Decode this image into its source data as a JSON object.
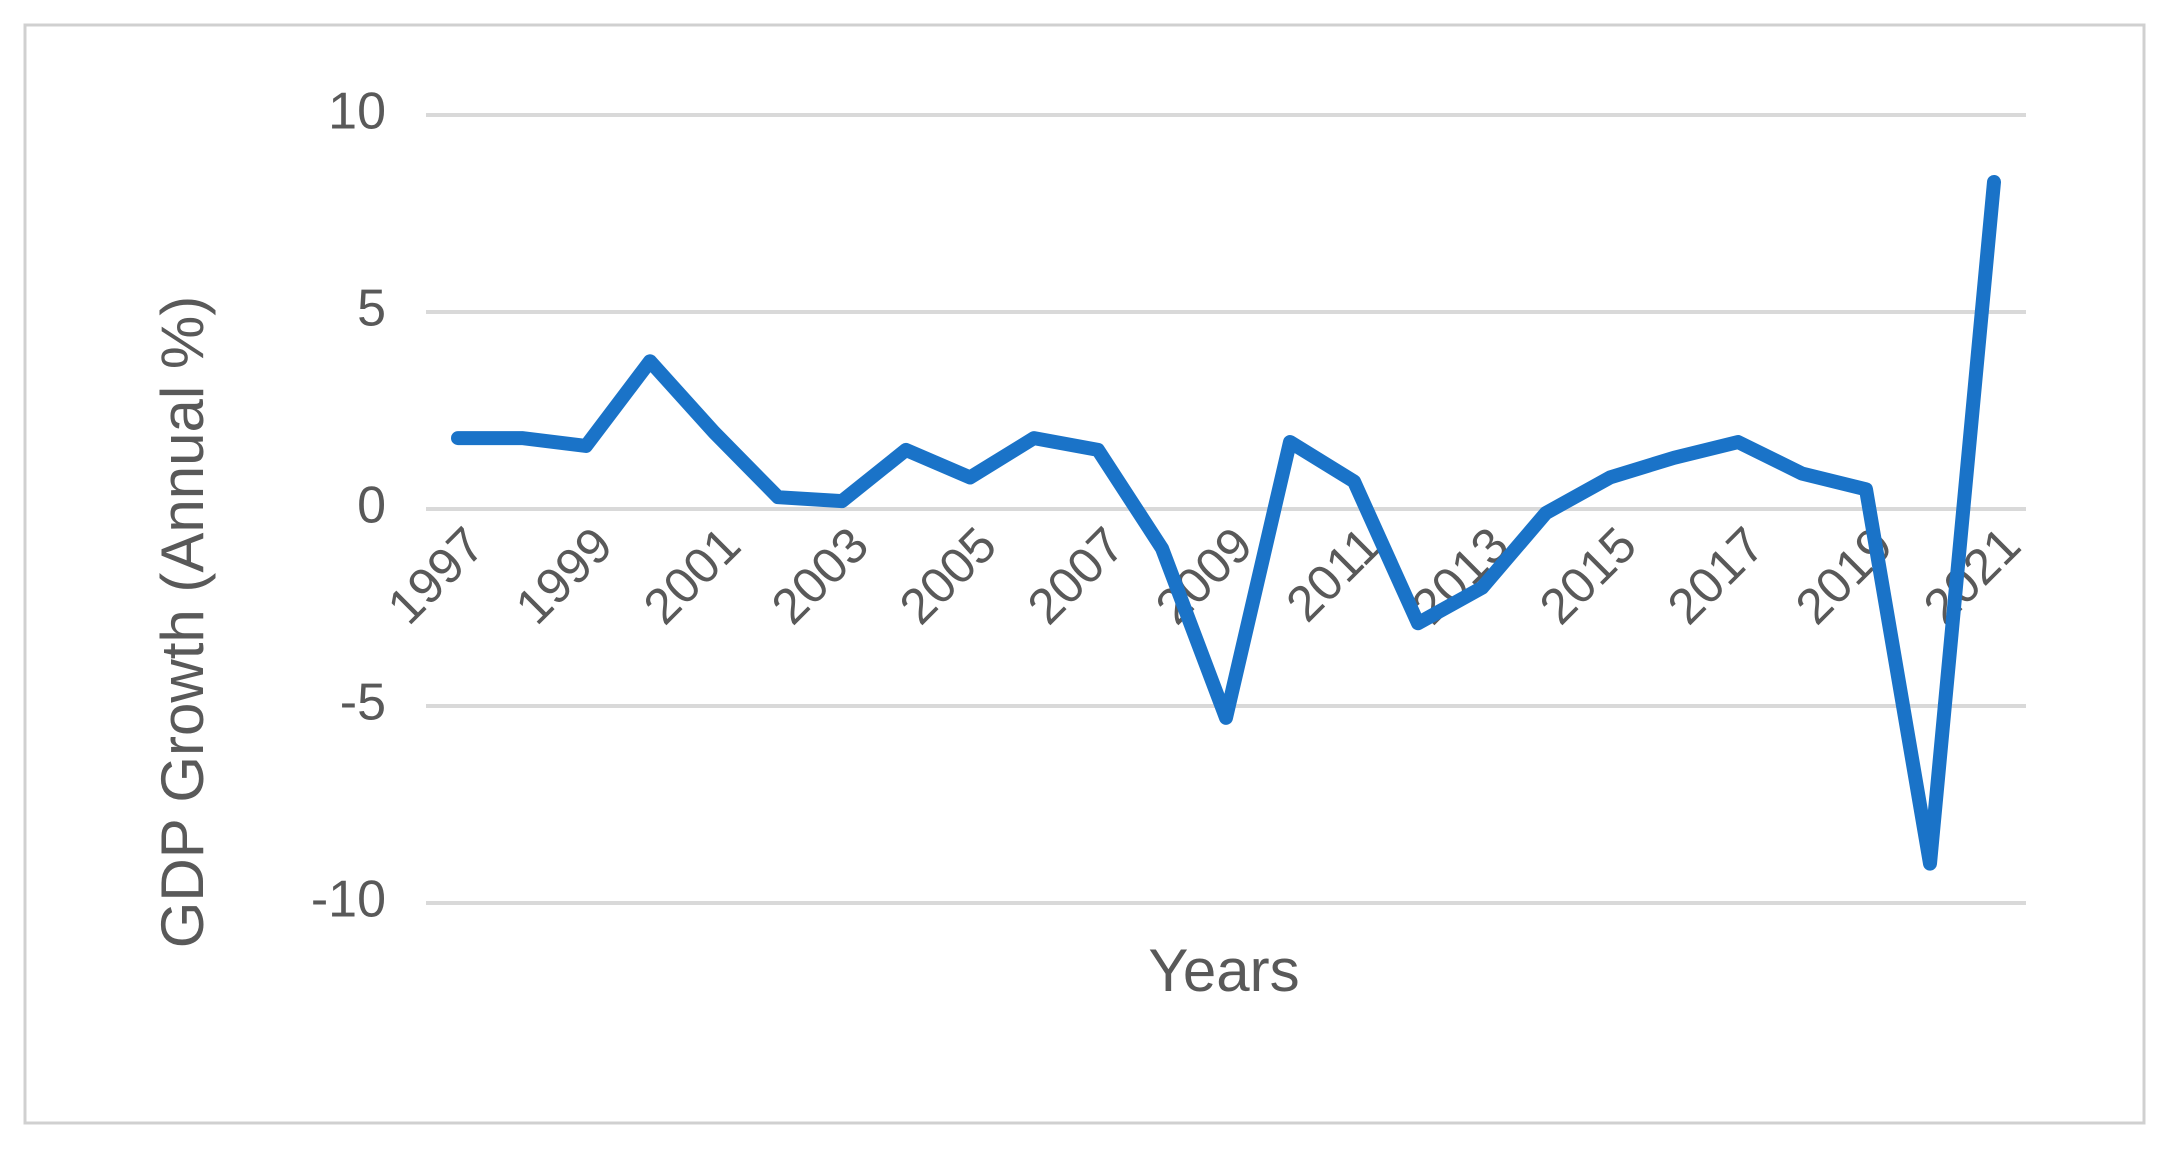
{
  "chart_data": {
    "type": "line",
    "y_label": "GDP Growth (Annual %)",
    "x_label": "Years",
    "categories": [
      "1997",
      null,
      "1999",
      null,
      "2001",
      null,
      "2003",
      null,
      "2005",
      null,
      "2007",
      null,
      "2009",
      null,
      "2011",
      null,
      "2013",
      null,
      "2015",
      null,
      "2017",
      null,
      "2019",
      null,
      "2021"
    ],
    "series": [
      {
        "name": "GDP Growth",
        "color": "#1a73c8",
        "values": [
          1.8,
          1.8,
          1.6,
          3.75,
          1.95,
          0.3,
          0.2,
          1.5,
          0.8,
          1.8,
          1.5,
          -1.0,
          -5.3,
          1.7,
          0.7,
          -2.9,
          -2.0,
          -0.1,
          0.8,
          1.3,
          1.7,
          0.9,
          0.5,
          -9.0,
          8.3
        ]
      }
    ],
    "ylim": [
      -10,
      10
    ],
    "yticks": [
      -10,
      -5,
      0,
      5,
      10
    ],
    "grid": true
  }
}
